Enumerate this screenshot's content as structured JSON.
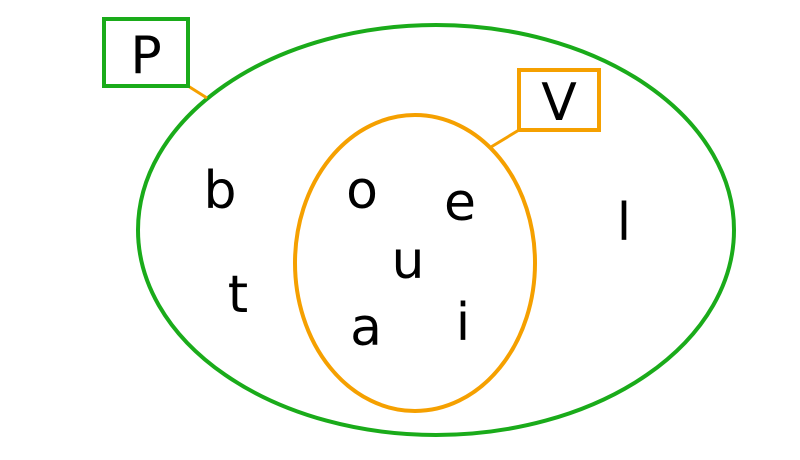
{
  "diagram": {
    "type": "venn-subset",
    "sets": [
      {
        "id": "P",
        "label": "P",
        "color": "#1aab1a",
        "elements_only_here": [
          "b",
          "t",
          "l"
        ]
      },
      {
        "id": "V",
        "label": "V",
        "color": "#f5a000",
        "subset_of": "P",
        "elements": [
          "o",
          "e",
          "u",
          "a",
          "i"
        ]
      }
    ]
  }
}
